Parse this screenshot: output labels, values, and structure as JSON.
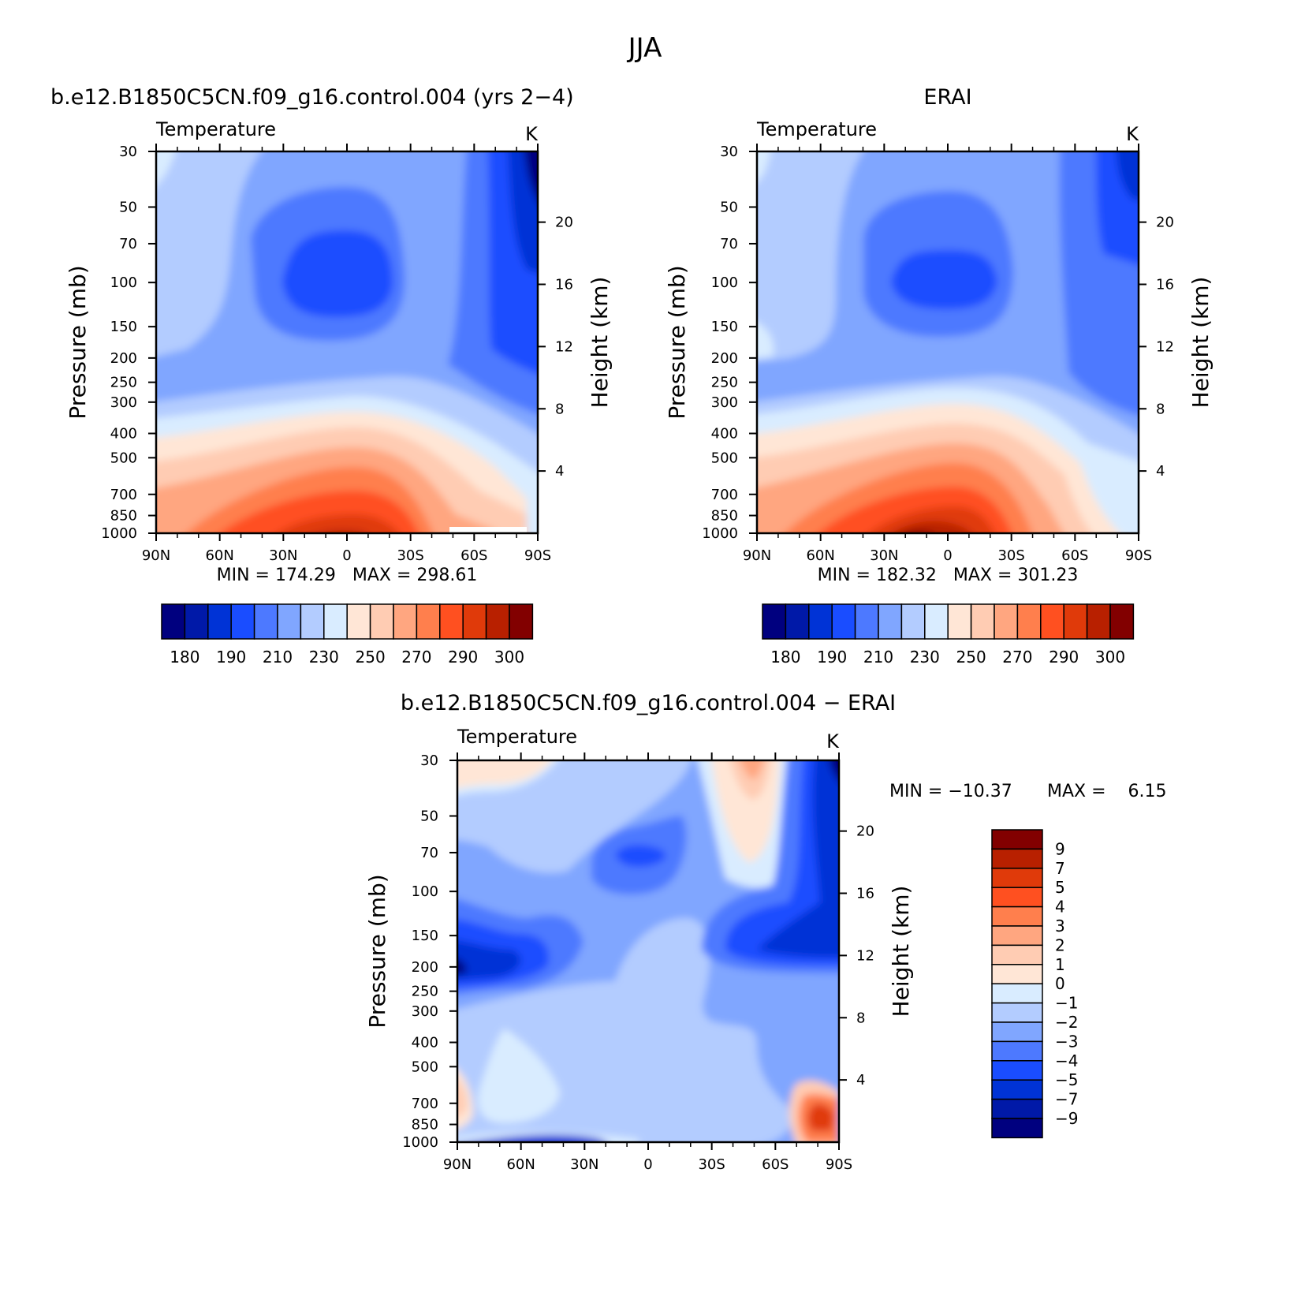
{
  "page_title": "JJA",
  "chart_data": [
    {
      "type": "heatmap",
      "title": "b.e12.B1850C5CN.f09_g16.control.004 (yrs 2−4)",
      "subtitle_left": "Temperature",
      "subtitle_right": "K",
      "ylabel": "Pressure (mb)",
      "y2label": "Height (km)",
      "x_ticks": [
        "90N",
        "60N",
        "30N",
        "0",
        "30S",
        "60S",
        "90S"
      ],
      "y_ticks": [
        "30",
        "50",
        "70",
        "100",
        "150",
        "200",
        "250",
        "300",
        "400",
        "500",
        "700",
        "850",
        "1000"
      ],
      "y2_ticks": [
        "20",
        "16",
        "12",
        "8",
        "4"
      ],
      "stats": "MIN = 174.29   MAX = 298.61",
      "min": 174.29,
      "max": 298.61,
      "colorbar_labels": [
        "180",
        "190",
        "210",
        "230",
        "250",
        "270",
        "290",
        "300"
      ]
    },
    {
      "type": "heatmap",
      "title": "ERAI",
      "subtitle_left": "Temperature",
      "subtitle_right": "K",
      "ylabel": "Pressure (mb)",
      "y2label": "Height (km)",
      "x_ticks": [
        "90N",
        "60N",
        "30N",
        "0",
        "30S",
        "60S",
        "90S"
      ],
      "y_ticks": [
        "30",
        "50",
        "70",
        "100",
        "150",
        "200",
        "250",
        "300",
        "400",
        "500",
        "700",
        "850",
        "1000"
      ],
      "y2_ticks": [
        "20",
        "16",
        "12",
        "8",
        "4"
      ],
      "stats": "MIN = 182.32   MAX = 301.23",
      "min": 182.32,
      "max": 301.23,
      "colorbar_labels": [
        "180",
        "190",
        "210",
        "230",
        "250",
        "270",
        "290",
        "300"
      ]
    },
    {
      "type": "heatmap",
      "title": "b.e12.B1850C5CN.f09_g16.control.004 − ERAI",
      "subtitle_left": "Temperature",
      "subtitle_right": "K",
      "ylabel": "Pressure (mb)",
      "y2label": "Height (km)",
      "x_ticks": [
        "90N",
        "60N",
        "30N",
        "0",
        "30S",
        "60S",
        "90S"
      ],
      "y_ticks": [
        "30",
        "50",
        "70",
        "100",
        "150",
        "200",
        "250",
        "300",
        "400",
        "500",
        "700",
        "850",
        "1000"
      ],
      "y2_ticks": [
        "20",
        "16",
        "12",
        "8",
        "4"
      ],
      "stats_min": "MIN = −10.37",
      "stats_max": "MAX =    6.15",
      "min": -10.37,
      "max": 6.15,
      "colorbar_labels": [
        "9",
        "7",
        "5",
        "4",
        "3",
        "2",
        "1",
        "0",
        "−1",
        "−2",
        "−3",
        "−4",
        "−5",
        "−7",
        "−9"
      ]
    }
  ],
  "palette": [
    "#00007f",
    "#0019a8",
    "#0033d6",
    "#1a4dff",
    "#4d79ff",
    "#80a6ff",
    "#b3ccff",
    "#d9ecff",
    "#ffe6d6",
    "#ffccb3",
    "#ffa680",
    "#ff7f4d",
    "#ff5020",
    "#e03a0a",
    "#b82000",
    "#820000"
  ]
}
